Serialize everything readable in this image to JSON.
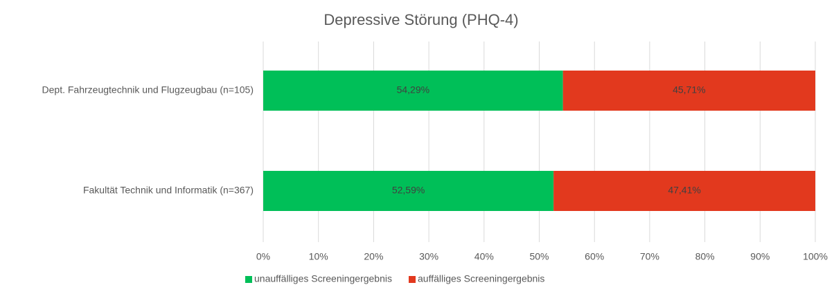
{
  "chart_data": {
    "type": "stacked-barh",
    "title": "Depressive Störung (PHQ-4)",
    "categories": [
      "Dept. Fahrzeugtechnik und Flugzeugbau (n=105)",
      "Fakultät Technik und Informatik (n=367)"
    ],
    "series": [
      {
        "name": "unauffälliges Screeningergebnis",
        "color": "#00bf58",
        "values": [
          54.29,
          52.59
        ],
        "value_labels": [
          "54,29%",
          "52,59%"
        ]
      },
      {
        "name": "auffälliges Screeningergebnis",
        "color": "#e2391e",
        "values": [
          45.71,
          47.41
        ],
        "value_labels": [
          "45,71%",
          "47,41%"
        ]
      }
    ],
    "xlim": [
      0,
      100
    ],
    "xticks": [
      {
        "value": 0,
        "label": "0%"
      },
      {
        "value": 10,
        "label": "10%"
      },
      {
        "value": 20,
        "label": "20%"
      },
      {
        "value": 30,
        "label": "30%"
      },
      {
        "value": 40,
        "label": "40%"
      },
      {
        "value": 50,
        "label": "50%"
      },
      {
        "value": 60,
        "label": "60%"
      },
      {
        "value": 70,
        "label": "70%"
      },
      {
        "value": 80,
        "label": "80%"
      },
      {
        "value": 90,
        "label": "90%"
      },
      {
        "value": 100,
        "label": "100%"
      }
    ],
    "grid": true,
    "legend": "bottom"
  }
}
